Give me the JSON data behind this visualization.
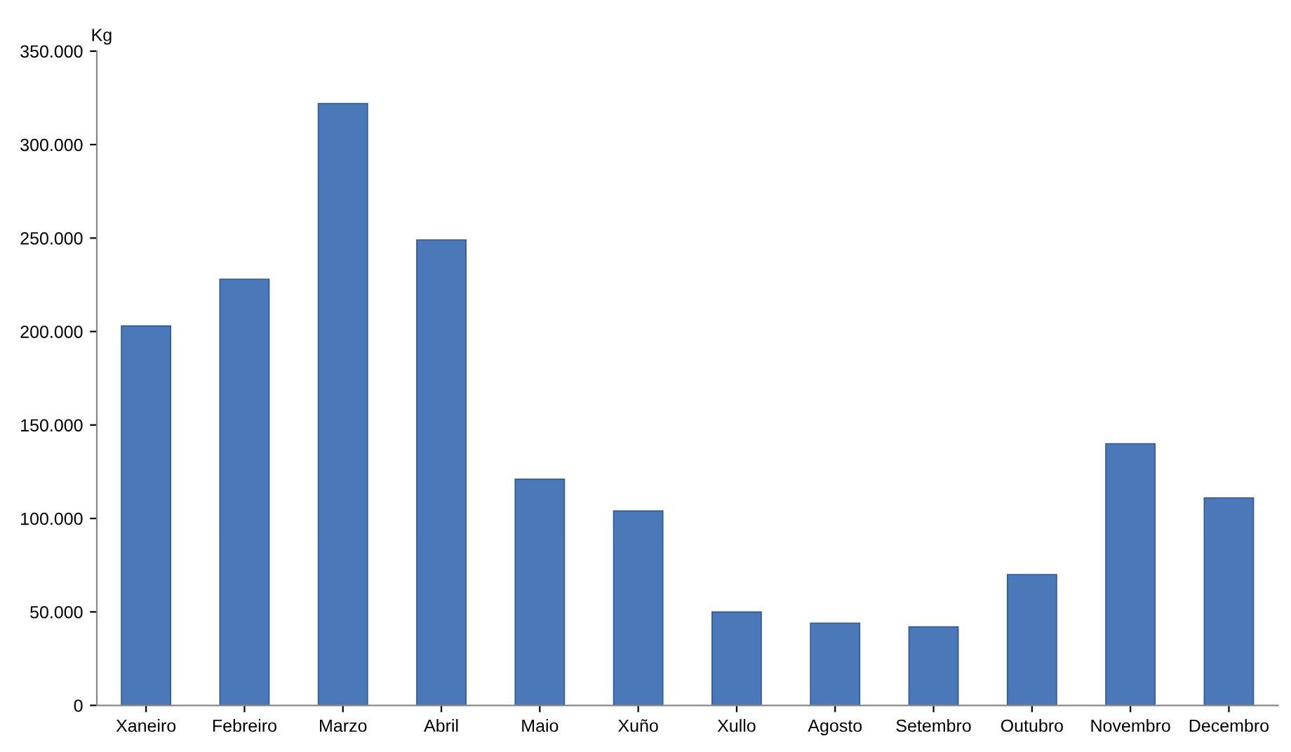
{
  "chart_data": {
    "type": "bar",
    "ylabel": "Kg",
    "categories": [
      "Xaneiro",
      "Febreiro",
      "Marzo",
      "Abril",
      "Maio",
      "Xuño",
      "Xullo",
      "Agosto",
      "Setembro",
      "Outubro",
      "Novembro",
      "Decembro"
    ],
    "values": [
      203000,
      228000,
      322000,
      249000,
      121000,
      104000,
      50000,
      44000,
      42000,
      70000,
      140000,
      111000
    ],
    "color": "#4a78b8",
    "ylim": [
      0,
      350000
    ],
    "yticks": [
      0,
      {
        "value": 50000,
        "label": "50.000"
      },
      {
        "value": 100000,
        "label": "100.000"
      },
      {
        "value": 150000,
        "label": "150.000"
      },
      {
        "value": 200000,
        "label": "200.000"
      },
      {
        "value": 250000,
        "label": "250.000"
      },
      {
        "value": 300000,
        "label": "300.000"
      },
      {
        "value": 350000,
        "label": "350.000"
      }
    ],
    "grid": false
  }
}
